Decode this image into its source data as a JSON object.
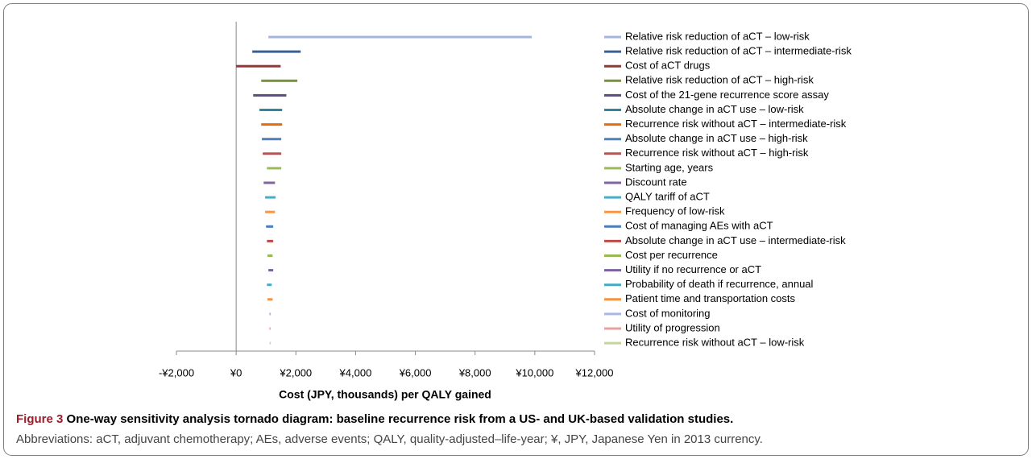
{
  "chart_data": {
    "type": "tornado",
    "xlabel": "Cost (JPY, thousands) per QALY gained",
    "caption_label": "Figure 3",
    "caption_title": "One-way sensitivity analysis tornado diagram: baseline recurrence risk from a US- and UK-based validation studies.",
    "caption_note": "Abbreviations: aCT, adjuvant chemotherapy; AEs, adverse events; QALY, quality-adjusted–life-year; ¥, JPY, Japanese Yen in 2013 currency.",
    "xlim": [
      -2000,
      12000
    ],
    "xticks": [
      {
        "value": -2000,
        "label": "-¥2,000"
      },
      {
        "value": 0,
        "label": "¥0"
      },
      {
        "value": 2000,
        "label": "¥2,000"
      },
      {
        "value": 4000,
        "label": "¥4,000"
      },
      {
        "value": 6000,
        "label": "¥6,000"
      },
      {
        "value": 8000,
        "label": "¥8,000"
      },
      {
        "value": 10000,
        "label": "¥10,000"
      },
      {
        "value": 12000,
        "label": "¥12,000"
      }
    ],
    "series": [
      {
        "name": "Relative risk reduction of aCT – low-risk",
        "color": "#a5b6da",
        "values": [
          1080,
          9900
        ]
      },
      {
        "name": "Relative risk reduction of aCT – intermediate-risk",
        "color": "#3a5f95",
        "values": [
          540,
          2160
        ]
      },
      {
        "name": "Cost of aCT drugs",
        "color": "#953735",
        "values": [
          0,
          1490
        ]
      },
      {
        "name": "Relative risk reduction of aCT – high-risk",
        "color": "#77933c",
        "values": [
          840,
          2050
        ]
      },
      {
        "name": "Cost of the 21-gene recurrence score assay",
        "color": "#604a7b",
        "values": [
          570,
          1680
        ]
      },
      {
        "name": "Absolute change in aCT use – low-risk",
        "color": "#31859c",
        "values": [
          780,
          1540
        ]
      },
      {
        "name": "Recurrence risk without aCT – intermediate-risk",
        "color": "#e46c0a",
        "values": [
          840,
          1540
        ]
      },
      {
        "name": "Absolute change in aCT use – high-risk",
        "color": "#4f81bd",
        "values": [
          860,
          1510
        ]
      },
      {
        "name": "Recurrence risk without aCT – high-risk",
        "color": "#c0504d",
        "values": [
          890,
          1510
        ]
      },
      {
        "name": "Starting age, years",
        "color": "#9bbb59",
        "values": [
          1030,
          1510
        ]
      },
      {
        "name": "Discount rate",
        "color": "#8064a2",
        "values": [
          920,
          1300
        ]
      },
      {
        "name": "QALY tariff of aCT",
        "color": "#4bacc6",
        "values": [
          970,
          1320
        ]
      },
      {
        "name": "Frequency of low-risk",
        "color": "#f79646",
        "values": [
          970,
          1300
        ]
      },
      {
        "name": "Cost of managing AEs with aCT",
        "color": "#4a7ebb",
        "values": [
          1000,
          1240
        ]
      },
      {
        "name": "Absolute change in aCT use – intermediate-risk",
        "color": "#be4b48",
        "values": [
          1030,
          1240
        ]
      },
      {
        "name": "Cost per recurrence",
        "color": "#98b954",
        "values": [
          1050,
          1220
        ]
      },
      {
        "name": "Utility if no recurrence or aCT",
        "color": "#7d60a0",
        "values": [
          1080,
          1240
        ]
      },
      {
        "name": "Probability of death if recurrence, annual",
        "color": "#46aac5",
        "values": [
          1030,
          1190
        ]
      },
      {
        "name": "Patient time and transportation costs",
        "color": "#f69240",
        "values": [
          1050,
          1220
        ]
      },
      {
        "name": "Cost of monitoring",
        "color": "#a7b9e3",
        "values": [
          1110,
          1160
        ]
      },
      {
        "name": "Utility of progression",
        "color": "#e6a0a0",
        "values": [
          1110,
          1140
        ]
      },
      {
        "name": "Recurrence risk without aCT – low-risk",
        "color": "#c4d79b",
        "values": [
          1120,
          1120
        ]
      }
    ]
  }
}
